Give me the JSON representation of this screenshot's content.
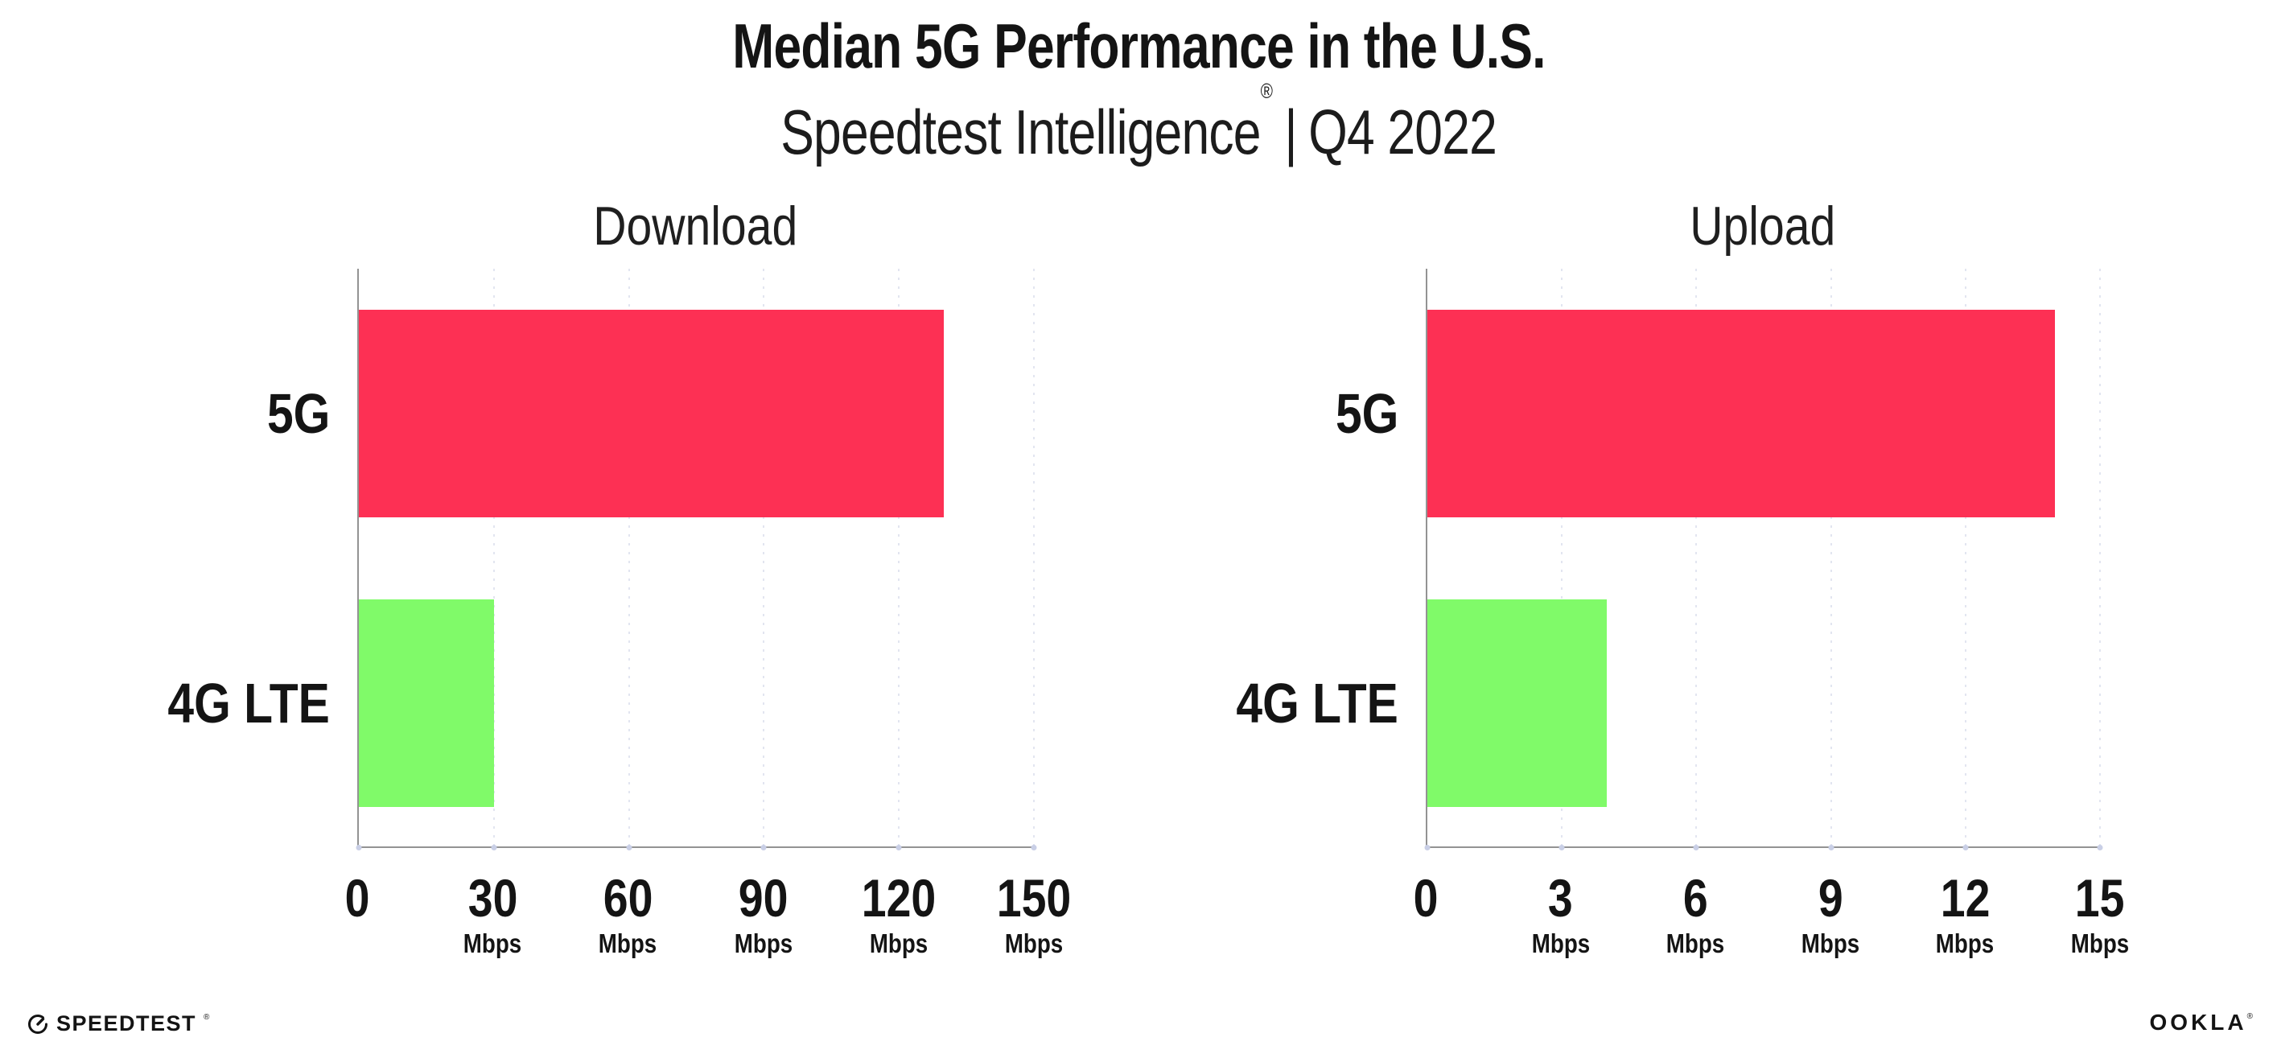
{
  "header": {
    "title": "Median 5G Performance in the U.S.",
    "subtitle": {
      "brand": "Speedtest Intelligence",
      "registered": "®",
      "separator": "|",
      "period": "Q4 2022"
    }
  },
  "chart_data": [
    {
      "type": "bar",
      "orientation": "horizontal",
      "title": "Download",
      "categories": [
        "5G",
        "4G LTE"
      ],
      "values": [
        130,
        30
      ],
      "unit": "Mbps",
      "xlim": [
        0,
        150
      ],
      "xticks": [
        0,
        30,
        60,
        90,
        120,
        150
      ],
      "bar_colors": [
        "#FD3054",
        "#80FA69"
      ],
      "grid": "dotted-vertical",
      "legend": "none"
    },
    {
      "type": "bar",
      "orientation": "horizontal",
      "title": "Upload",
      "categories": [
        "5G",
        "4G LTE"
      ],
      "values": [
        14,
        4
      ],
      "unit": "Mbps",
      "xlim": [
        0,
        15
      ],
      "xticks": [
        0,
        3,
        6,
        9,
        12,
        15
      ],
      "bar_colors": [
        "#FD3054",
        "#80FA69"
      ],
      "grid": "dotted-vertical",
      "legend": "none"
    }
  ],
  "footer": {
    "speedtest_label": "SPEEDTEST",
    "speedtest_registered": "®",
    "speedtest_icon": "gauge-icon",
    "ookla_label": "OOKLA",
    "ookla_registered": "®"
  },
  "colors": {
    "bar_5g": "#FD3054",
    "bar_4g_lte": "#80FA69",
    "axis": "#939393",
    "gridline": "#E2E5F0",
    "tick_dot": "#C9CFE6",
    "text": "#141414"
  }
}
